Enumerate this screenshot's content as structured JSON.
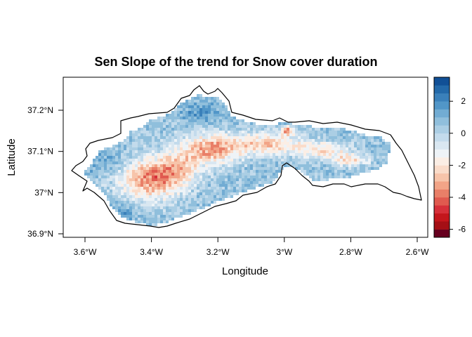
{
  "chart_data": {
    "type": "heatmap",
    "title": "Sen Slope of the trend for Snow cover duration",
    "xlabel": "Longitude",
    "ylabel": "Latitude",
    "xlim": [
      -3.67,
      -2.57
    ],
    "ylim": [
      36.88,
      37.28
    ],
    "x_ticks": [
      {
        "value": -3.6,
        "label": "3.6°W"
      },
      {
        "value": -3.4,
        "label": "3.4°W"
      },
      {
        "value": -3.2,
        "label": "3.2°W"
      },
      {
        "value": -3.0,
        "label": "3°W"
      },
      {
        "value": -2.8,
        "label": "2.8°W"
      },
      {
        "value": -2.6,
        "label": "2.6°W"
      }
    ],
    "y_ticks": [
      {
        "value": 36.9,
        "label": "36.9°N"
      },
      {
        "value": 37.0,
        "label": "37°N"
      },
      {
        "value": 37.1,
        "label": "37.1°N"
      },
      {
        "value": 37.2,
        "label": "37.2°N"
      }
    ],
    "colorbar": {
      "range": [
        -6.5,
        3.5
      ],
      "step": 0.5,
      "ticks": [
        -6,
        -4,
        -2,
        0,
        2
      ],
      "colors": [
        "#67001f",
        "#a50f15",
        "#c4161c",
        "#d6303a",
        "#e05a4f",
        "#e97f68",
        "#f2a487",
        "#f7c4aa",
        "#fadcca",
        "#fbeee5",
        "#eef3f7",
        "#d9e7f1",
        "#c3dbec",
        "#abcee4",
        "#90bfdc",
        "#72acd3",
        "#5196c8",
        "#3a80ba",
        "#2369a9",
        "#115096"
      ]
    },
    "legend": "right colorbar"
  }
}
